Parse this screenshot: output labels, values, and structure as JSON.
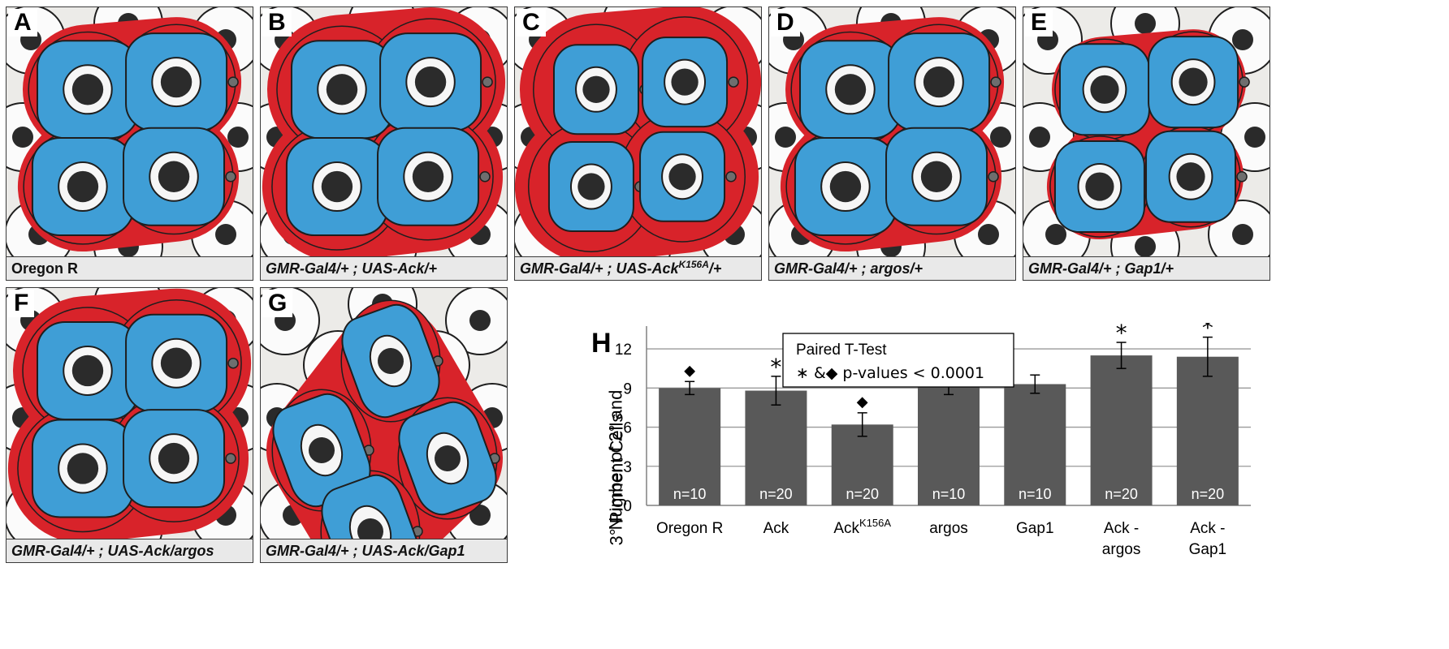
{
  "panels": [
    {
      "letter": "A",
      "caption_plain": "Oregon R",
      "caption_pre": "",
      "caption_sup": "",
      "caption_post": "",
      "style": "normal"
    },
    {
      "letter": "B",
      "caption_plain": "",
      "caption_pre": "GMR-Gal4/+ ; UAS-Ack/+",
      "caption_sup": "",
      "caption_post": "",
      "style": "crowded"
    },
    {
      "letter": "C",
      "caption_plain": "",
      "caption_pre": "GMR-Gal4/+ ; UAS-Ack",
      "caption_sup": "K156A",
      "caption_post": "/+",
      "style": "sparse"
    },
    {
      "letter": "D",
      "caption_plain": "",
      "caption_pre": "GMR-Gal4/+ ; argos/+",
      "caption_sup": "",
      "caption_post": "",
      "style": "normal"
    },
    {
      "letter": "E",
      "caption_plain": "",
      "caption_pre": "GMR-Gal4/+ ; Gap1/+",
      "caption_sup": "",
      "caption_post": "",
      "style": "tight"
    },
    {
      "letter": "F",
      "caption_plain": "",
      "caption_pre": "GMR-Gal4/+ ; UAS-Ack/argos",
      "caption_sup": "",
      "caption_post": "",
      "style": "crowded"
    },
    {
      "letter": "G",
      "caption_plain": "",
      "caption_pre": "GMR-Gal4/+ ; UAS-Ack/Gap1",
      "caption_sup": "",
      "caption_post": "",
      "style": "diag"
    }
  ],
  "chart_panel_letter": "H",
  "chart_data": {
    "type": "bar",
    "ylabel_line1": "Number of 2° and",
    "ylabel_line2": "3° Pigment Cells",
    "ylim": [
      0,
      13
    ],
    "yticks": [
      0,
      3,
      6,
      9,
      12
    ],
    "categories": [
      {
        "lines": [
          "Oregon R"
        ],
        "base": "",
        "sup": ""
      },
      {
        "lines": [
          "Ack"
        ],
        "base": "",
        "sup": ""
      },
      {
        "lines": [],
        "base": "Ack",
        "sup": "K156A"
      },
      {
        "lines": [
          "argos"
        ],
        "base": "",
        "sup": ""
      },
      {
        "lines": [
          "Gap1"
        ],
        "base": "",
        "sup": ""
      },
      {
        "lines": [
          "Ack -",
          "argos"
        ],
        "base": "",
        "sup": ""
      },
      {
        "lines": [
          "Ack -",
          "Gap1"
        ],
        "base": "",
        "sup": ""
      }
    ],
    "values": [
      9.0,
      8.8,
      6.2,
      9.1,
      9.3,
      11.5,
      11.4
    ],
    "errors": [
      0.5,
      1.1,
      0.9,
      0.6,
      0.7,
      1.0,
      1.5
    ],
    "n_labels": [
      "n=10",
      "n=20",
      "n=20",
      "n=10",
      "n=10",
      "n=20",
      "n=20"
    ],
    "markers": [
      "◆",
      "*",
      "◆",
      "",
      "",
      "*",
      "*"
    ],
    "legend_title": "Paired  T-Test",
    "legend_line": "∗ &◆   p-values < 0.0001",
    "grid": true,
    "colors": {
      "bar": "#595959",
      "grid": "#9a9a9a",
      "axis": "#808080",
      "n_label": "#ffffff"
    }
  }
}
